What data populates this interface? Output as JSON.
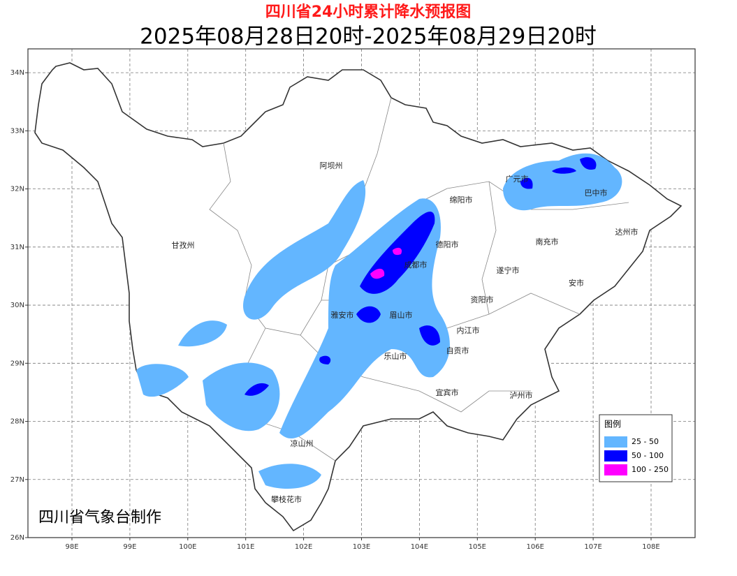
{
  "header": {
    "title": "四川省24小时累计降水预报图",
    "subtitle": "2025年08月28日20时-2025年08月29日20时"
  },
  "map": {
    "lon_range": [
      97.24,
      108.76
    ],
    "lat_range": [
      26,
      34.41
    ],
    "lon_ticks": [
      {
        "value": 98,
        "label": "98E"
      },
      {
        "value": 99,
        "label": "99E"
      },
      {
        "value": 100,
        "label": "100E"
      },
      {
        "value": 101,
        "label": "101E"
      },
      {
        "value": 102,
        "label": "102E"
      },
      {
        "value": 103,
        "label": "103E"
      },
      {
        "value": 104,
        "label": "104E"
      },
      {
        "value": 105,
        "label": "105E"
      },
      {
        "value": 106,
        "label": "106E"
      },
      {
        "value": 107,
        "label": "107E"
      },
      {
        "value": 108,
        "label": "108E"
      }
    ],
    "lat_ticks": [
      {
        "value": 26,
        "label": "26N"
      },
      {
        "value": 27,
        "label": "27N"
      },
      {
        "value": 28,
        "label": "28N"
      },
      {
        "value": 29,
        "label": "29N"
      },
      {
        "value": 30,
        "label": "30N"
      },
      {
        "value": 31,
        "label": "31N"
      },
      {
        "value": 32,
        "label": "32N"
      },
      {
        "value": 33,
        "label": "33N"
      },
      {
        "value": 34,
        "label": "34N"
      }
    ],
    "grid": true
  },
  "places": [
    "阿坝州",
    "甘孜州",
    "绵阳市",
    "广元市",
    "巴中市",
    "达州市",
    "南充市",
    "德阳市",
    "成都市",
    "遂宁市",
    "安市",
    "资阳市",
    "雅安市",
    "眉山市",
    "内江市",
    "乐山市",
    "自贡市",
    "宜宾市",
    "泸州市",
    "凉山州",
    "攀枝花市"
  ],
  "legend": {
    "title": "图例",
    "items": [
      {
        "label": "25 - 50",
        "color": "#63b6ff"
      },
      {
        "label": "50 - 100",
        "color": "#0000ff"
      },
      {
        "label": "100 - 250",
        "color": "#ff00ff"
      }
    ]
  },
  "credit": "四川省气象台制作"
}
